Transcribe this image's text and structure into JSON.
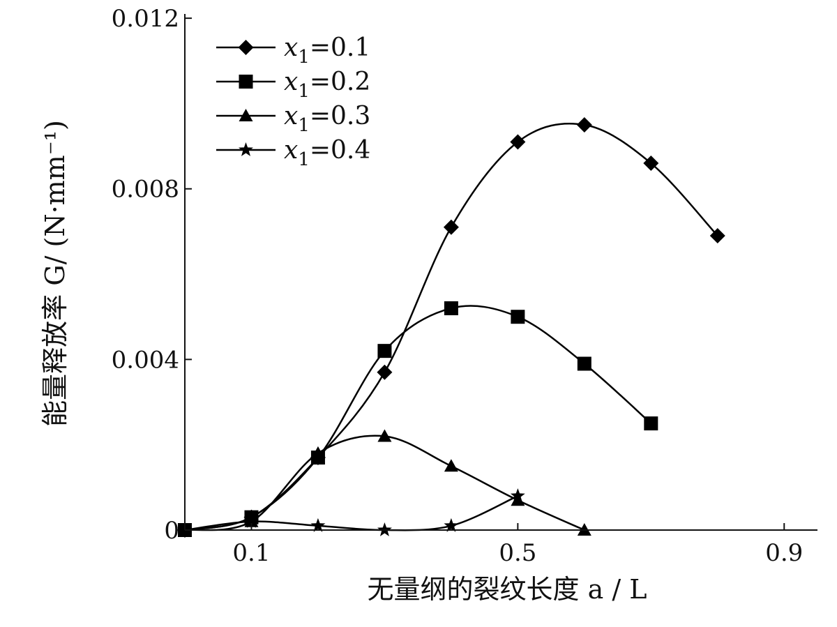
{
  "chart_data": {
    "type": "line",
    "xlabel": "无量纲的裂纹长度 a / L",
    "ylabel": "能量释放率 G/ (N·mm⁻¹)",
    "xlim": [
      0.0,
      0.95
    ],
    "ylim": [
      0,
      0.0121
    ],
    "x_ticks": [
      0.1,
      0.5,
      0.9
    ],
    "x_tick_labels": [
      "0.1",
      "0.5",
      "0.9"
    ],
    "y_ticks": [
      0,
      0.004,
      0.008,
      0.012
    ],
    "y_tick_labels": [
      "0",
      "0.004",
      "0.008",
      "0.012"
    ],
    "legend_position": "top-left",
    "grid": false,
    "series": [
      {
        "name": "x1=0.1",
        "legend_var": "x",
        "legend_sub": "1",
        "legend_val": "=0.1",
        "marker": "diamond",
        "x": [
          0.0,
          0.1,
          0.2,
          0.3,
          0.4,
          0.5,
          0.6,
          0.7,
          0.8
        ],
        "y": [
          0.0,
          0.0003,
          0.0017,
          0.0037,
          0.0071,
          0.0091,
          0.0095,
          0.0086,
          0.0069
        ]
      },
      {
        "name": "x1=0.2",
        "legend_var": "x",
        "legend_sub": "1",
        "legend_val": "=0.2",
        "marker": "square",
        "x": [
          0.0,
          0.1,
          0.2,
          0.3,
          0.4,
          0.5,
          0.6,
          0.7
        ],
        "y": [
          0.0,
          0.0003,
          0.0017,
          0.0042,
          0.0052,
          0.005,
          0.0039,
          0.0025
        ]
      },
      {
        "name": "x1=0.3",
        "legend_var": "x",
        "legend_sub": "1",
        "legend_val": "=0.3",
        "marker": "triangle",
        "x": [
          0.0,
          0.1,
          0.2,
          0.3,
          0.4,
          0.5,
          0.6
        ],
        "y": [
          0.0,
          0.0002,
          0.0018,
          0.0022,
          0.0015,
          0.0007,
          0.0
        ]
      },
      {
        "name": "x1=0.4",
        "legend_var": "x",
        "legend_sub": "1",
        "legend_val": "=0.4",
        "marker": "star",
        "x": [
          0.0,
          0.1,
          0.2,
          0.3,
          0.4,
          0.5
        ],
        "y": [
          0.0,
          0.0002,
          0.0001,
          0.0,
          0.0001,
          0.0008
        ]
      }
    ]
  }
}
